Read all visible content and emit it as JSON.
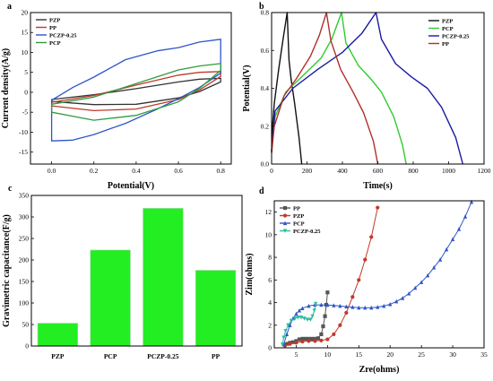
{
  "chart_data": [
    {
      "id": "cv",
      "panel_letter": "a",
      "type": "line",
      "xlabel": "Potential(V)",
      "ylabel": "Current density(A/g)",
      "xlim": [
        -0.1,
        0.85
      ],
      "ylim": [
        -18,
        20
      ],
      "xticks": [
        0.0,
        0.2,
        0.4,
        0.6,
        0.8
      ],
      "yticks": [
        -15,
        -10,
        -5,
        0,
        5,
        10,
        15,
        20
      ],
      "legend_position": "top-left",
      "series": [
        {
          "name": "PZP",
          "color": "#333333",
          "upper": [
            [
              0,
              -1.8
            ],
            [
              0.2,
              -0.6
            ],
            [
              0.4,
              0.9
            ],
            [
              0.6,
              2.6
            ],
            [
              0.7,
              3.3
            ],
            [
              0.8,
              3.5
            ]
          ],
          "lower": [
            [
              0.8,
              2.6
            ],
            [
              0.7,
              0.2
            ],
            [
              0.6,
              -1.4
            ],
            [
              0.4,
              -3.0
            ],
            [
              0.2,
              -3.1
            ],
            [
              0,
              -2.3
            ]
          ]
        },
        {
          "name": "PP",
          "color": "#c0392b",
          "upper": [
            [
              0,
              -2.5
            ],
            [
              0.2,
              -0.8
            ],
            [
              0.4,
              1.8
            ],
            [
              0.6,
              4.3
            ],
            [
              0.7,
              5.0
            ],
            [
              0.8,
              5.2
            ]
          ],
          "lower": [
            [
              0.8,
              4.0
            ],
            [
              0.7,
              0.6
            ],
            [
              0.6,
              -1.8
            ],
            [
              0.4,
              -4.2
            ],
            [
              0.2,
              -4.6
            ],
            [
              0,
              -3.4
            ]
          ]
        },
        {
          "name": "PCZP-0.25",
          "color": "#2e56c8",
          "upper": [
            [
              0,
              -2.0
            ],
            [
              0.1,
              1.2
            ],
            [
              0.2,
              3.8
            ],
            [
              0.35,
              8.2
            ],
            [
              0.5,
              10.4
            ],
            [
              0.6,
              11.2
            ],
            [
              0.7,
              12.6
            ],
            [
              0.8,
              13.3
            ]
          ],
          "lower": [
            [
              0.8,
              4.8
            ],
            [
              0.7,
              1.2
            ],
            [
              0.6,
              -1.6
            ],
            [
              0.5,
              -4.2
            ],
            [
              0.35,
              -7.8
            ],
            [
              0.2,
              -10.6
            ],
            [
              0.1,
              -12.0
            ],
            [
              0,
              -12.2
            ]
          ]
        },
        {
          "name": "PCP",
          "color": "#2e9c3e",
          "upper": [
            [
              0,
              -3.0
            ],
            [
              0.2,
              -1.2
            ],
            [
              0.4,
              2.2
            ],
            [
              0.6,
              5.6
            ],
            [
              0.7,
              6.6
            ],
            [
              0.8,
              7.2
            ]
          ],
          "lower": [
            [
              0.8,
              5.5
            ],
            [
              0.7,
              1.0
            ],
            [
              0.6,
              -2.4
            ],
            [
              0.4,
              -5.8
            ],
            [
              0.2,
              -7.0
            ],
            [
              0,
              -5.0
            ]
          ]
        }
      ]
    },
    {
      "id": "gcd",
      "panel_letter": "b",
      "type": "line",
      "xlabel": "Time(s)",
      "ylabel": "Potential(V)",
      "xlim": [
        0,
        1200
      ],
      "ylim": [
        0,
        0.8
      ],
      "xticks": [
        0,
        200,
        400,
        600,
        800,
        1000,
        1200
      ],
      "yticks": [
        0.0,
        0.2,
        0.4,
        0.6,
        0.8
      ],
      "legend_position": "top-right",
      "series": [
        {
          "name": "PZP",
          "color": "#111111",
          "points": [
            [
              0,
              0.06
            ],
            [
              5,
              0.2
            ],
            [
              15,
              0.32
            ],
            [
              40,
              0.5
            ],
            [
              65,
              0.66
            ],
            [
              88,
              0.8
            ],
            [
              98,
              0.55
            ],
            [
              110,
              0.45
            ],
            [
              130,
              0.32
            ],
            [
              155,
              0.14
            ],
            [
              170,
              0.0
            ]
          ]
        },
        {
          "name": "PCP",
          "color": "#2ecc2e",
          "points": [
            [
              0,
              0.07
            ],
            [
              20,
              0.25
            ],
            [
              80,
              0.38
            ],
            [
              180,
              0.47
            ],
            [
              280,
              0.56
            ],
            [
              340,
              0.66
            ],
            [
              395,
              0.8
            ],
            [
              420,
              0.64
            ],
            [
              490,
              0.52
            ],
            [
              560,
              0.45
            ],
            [
              620,
              0.38
            ],
            [
              690,
              0.25
            ],
            [
              740,
              0.1
            ],
            [
              760,
              0.0
            ]
          ]
        },
        {
          "name": "PCZP-0.25",
          "color": "#1a1aa6",
          "points": [
            [
              0,
              0.07
            ],
            [
              20,
              0.28
            ],
            [
              120,
              0.4
            ],
            [
              260,
              0.5
            ],
            [
              400,
              0.59
            ],
            [
              510,
              0.69
            ],
            [
              590,
              0.8
            ],
            [
              620,
              0.66
            ],
            [
              700,
              0.53
            ],
            [
              790,
              0.46
            ],
            [
              880,
              0.4
            ],
            [
              960,
              0.3
            ],
            [
              1040,
              0.14
            ],
            [
              1080,
              0.0
            ]
          ]
        },
        {
          "name": "PP",
          "color": "#b0302a",
          "points": [
            [
              0,
              0.06
            ],
            [
              15,
              0.2
            ],
            [
              70,
              0.36
            ],
            [
              140,
              0.45
            ],
            [
              220,
              0.57
            ],
            [
              270,
              0.68
            ],
            [
              310,
              0.8
            ],
            [
              335,
              0.65
            ],
            [
              390,
              0.5
            ],
            [
              460,
              0.38
            ],
            [
              520,
              0.27
            ],
            [
              575,
              0.12
            ],
            [
              600,
              0.0
            ]
          ]
        }
      ]
    },
    {
      "id": "capacitance",
      "panel_letter": "c",
      "type": "bar",
      "xlabel": "",
      "ylabel": "Gravimetric capacitance(F/g)",
      "categories": [
        "PZP",
        "PCP",
        "PCZP-0.25",
        "PP"
      ],
      "values": [
        53,
        223,
        320,
        176
      ],
      "ylim": [
        0,
        350
      ],
      "yticks": [
        0,
        50,
        100,
        150,
        200,
        250,
        300,
        350
      ],
      "bar_color": "#22ee22"
    },
    {
      "id": "eis",
      "panel_letter": "d",
      "type": "scatter",
      "xlabel": "Zre(ohms)",
      "ylabel": "Zim(ohms)",
      "xlim": [
        1.5,
        35
      ],
      "ylim": [
        0,
        13
      ],
      "xticks": [
        5,
        10,
        15,
        20,
        25,
        30,
        35
      ],
      "yticks": [
        0,
        2,
        4,
        6,
        8,
        10,
        12
      ],
      "legend_position": "top-left",
      "series": [
        {
          "name": "PP",
          "color": "#555555",
          "marker": "square",
          "points": [
            [
              3.2,
              0.3
            ],
            [
              3.6,
              0.35
            ],
            [
              4.0,
              0.45
            ],
            [
              4.5,
              0.5
            ],
            [
              5.0,
              0.6
            ],
            [
              5.5,
              0.75
            ],
            [
              6.0,
              0.8
            ],
            [
              6.5,
              0.8
            ],
            [
              7.0,
              0.8
            ],
            [
              7.5,
              0.8
            ],
            [
              8.0,
              0.8
            ],
            [
              8.5,
              0.85
            ],
            [
              9.0,
              1.2
            ],
            [
              9.3,
              1.9
            ],
            [
              9.6,
              2.8
            ],
            [
              9.8,
              3.8
            ],
            [
              10.0,
              4.9
            ]
          ]
        },
        {
          "name": "PZP",
          "color": "#c0392b",
          "marker": "circle",
          "points": [
            [
              3.2,
              0.2
            ],
            [
              4.0,
              0.35
            ],
            [
              5.0,
              0.45
            ],
            [
              6.0,
              0.55
            ],
            [
              7.0,
              0.6
            ],
            [
              8.0,
              0.6
            ],
            [
              9.0,
              0.65
            ],
            [
              10.0,
              0.75
            ],
            [
              11.0,
              1.2
            ],
            [
              12.0,
              2.0
            ],
            [
              13.0,
              3.1
            ],
            [
              14.0,
              4.5
            ],
            [
              15.0,
              6.0
            ],
            [
              16.0,
              7.8
            ],
            [
              17.0,
              9.8
            ],
            [
              18.0,
              12.4
            ]
          ]
        },
        {
          "name": "PCP",
          "color": "#2e56c8",
          "marker": "triangle-up",
          "points": [
            [
              3.0,
              0.3
            ],
            [
              3.5,
              1.2
            ],
            [
              4.0,
              2.0
            ],
            [
              4.5,
              2.6
            ],
            [
              5.0,
              3.0
            ],
            [
              5.5,
              3.3
            ],
            [
              6.0,
              3.5
            ],
            [
              7.0,
              3.7
            ],
            [
              8.0,
              3.8
            ],
            [
              9.0,
              3.8
            ],
            [
              10.0,
              3.8
            ],
            [
              11.0,
              3.75
            ],
            [
              12.0,
              3.7
            ],
            [
              13.0,
              3.65
            ],
            [
              14.0,
              3.6
            ],
            [
              15.0,
              3.55
            ],
            [
              16.0,
              3.55
            ],
            [
              17.0,
              3.55
            ],
            [
              18.0,
              3.6
            ],
            [
              19.0,
              3.7
            ],
            [
              20.0,
              3.85
            ],
            [
              21.0,
              4.1
            ],
            [
              22.0,
              4.4
            ],
            [
              23.0,
              4.8
            ],
            [
              24.0,
              5.3
            ],
            [
              25.0,
              5.8
            ],
            [
              26.0,
              6.4
            ],
            [
              27.0,
              7.1
            ],
            [
              28.0,
              7.8
            ],
            [
              29.0,
              8.7
            ],
            [
              30.0,
              9.6
            ],
            [
              31.0,
              10.5
            ],
            [
              32.0,
              11.6
            ],
            [
              33.0,
              12.9
            ]
          ]
        },
        {
          "name": "PCZP-0.25",
          "color": "#2ebda0",
          "marker": "triangle-down",
          "points": [
            [
              2.8,
              0.3
            ],
            [
              3.0,
              0.9
            ],
            [
              3.3,
              1.5
            ],
            [
              3.7,
              2.0
            ],
            [
              4.2,
              2.4
            ],
            [
              4.8,
              2.6
            ],
            [
              5.3,
              2.7
            ],
            [
              5.8,
              2.7
            ],
            [
              6.3,
              2.6
            ],
            [
              6.8,
              2.5
            ],
            [
              7.3,
              2.5
            ],
            [
              7.6,
              2.8
            ],
            [
              7.9,
              3.3
            ],
            [
              8.1,
              3.9
            ]
          ]
        }
      ]
    }
  ]
}
